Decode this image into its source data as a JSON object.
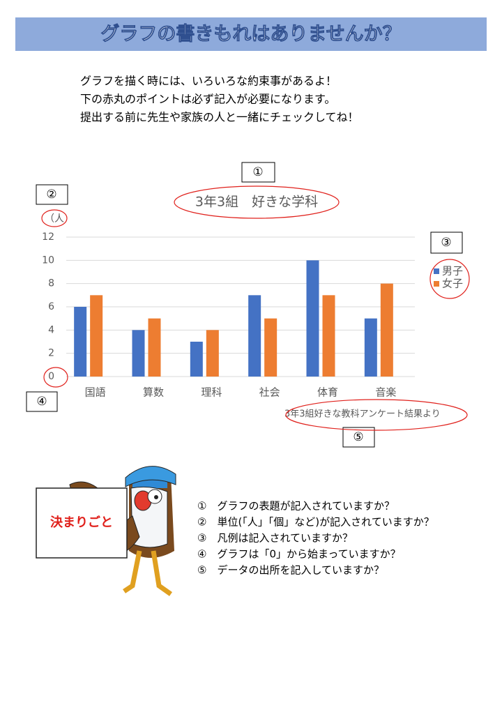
{
  "header": {
    "title": "グラフの書きもれはありませんか？"
  },
  "intro": [
    "グラフを描く時には、いろいろな約束事があるよ！",
    "下の赤丸のポイントは必ず記入が必要になります。",
    "提出する前に先生や家族の人と一緒にチェックしてね！"
  ],
  "markers": [
    "①",
    "②",
    "③",
    "④",
    "⑤"
  ],
  "chart_data": {
    "type": "bar",
    "title": "3年3組　好きな学科",
    "unit": "（人",
    "categories": [
      "国語",
      "算数",
      "理科",
      "社会",
      "体育",
      "音楽"
    ],
    "series": [
      {
        "name": "男子",
        "color": "#4472c4",
        "values": [
          6,
          4,
          3,
          7,
          10,
          5
        ]
      },
      {
        "name": "女子",
        "color": "#ed7d31",
        "values": [
          7,
          5,
          4,
          5,
          7,
          8
        ]
      }
    ],
    "ylim": [
      0,
      12
    ],
    "yticks": [
      0,
      2,
      4,
      6,
      8,
      10,
      12
    ],
    "grid": true,
    "legend": "right",
    "source": "3年3組好きな教科アンケート結果より"
  },
  "sign": "決まりごと",
  "checklist": [
    "①　グラフの表題が記入されていますか？",
    "②　単位(「人」「個」など)が記入されていますか？",
    "③　凡例は記入されていますか？",
    "④　グラフは「0」から始まっていますか？",
    "⑤　データの出所を記入していますか？"
  ]
}
